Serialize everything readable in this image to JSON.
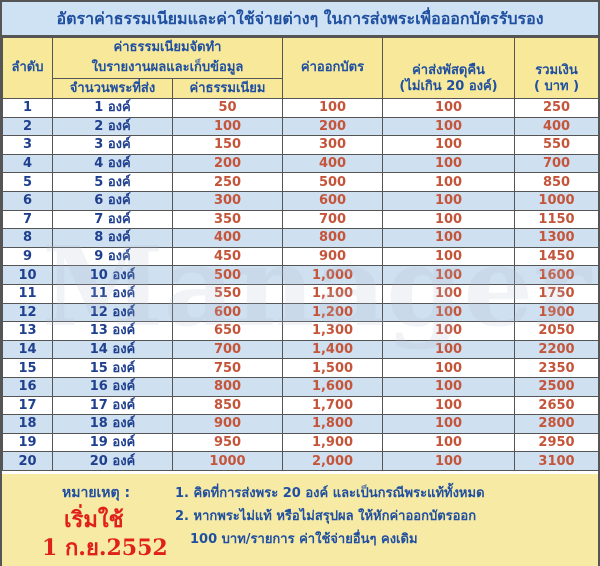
{
  "title": "อัตราค่าธรรมเนียมและค่าใช้จ่ายต่างๆ ในการส่งพระเพื่อออกบัตรรับรอง",
  "headers": {
    "order": "ลำดับ",
    "fee_group_1": "ค่าธรรมเนียมจัดทำ",
    "fee_group_2": "ใบรายงานผลและเก็บข้อมูล",
    "count": "จำนวนพระที่ส่ง",
    "fee": "ค่าธรรมเนียม",
    "card": "ค่าออกบัตร",
    "ship_1": "ค่าส่งพัสดุคืน",
    "ship_2": "(ไม่เกิน 20 องค์)",
    "total_1": "รวมเงิน",
    "total_2": "( บาท )"
  },
  "rows": [
    [
      "1",
      "1  องค์",
      "50",
      "100",
      "100",
      "250"
    ],
    [
      "2",
      "2  องค์",
      "100",
      "200",
      "100",
      "400"
    ],
    [
      "3",
      "3  องค์",
      "150",
      "300",
      "100",
      "550"
    ],
    [
      "4",
      "4  องค์",
      "200",
      "400",
      "100",
      "700"
    ],
    [
      "5",
      "5  องค์",
      "250",
      "500",
      "100",
      "850"
    ],
    [
      "6",
      "6  องค์",
      "300",
      "600",
      "100",
      "1000"
    ],
    [
      "7",
      "7  องค์",
      "350",
      "700",
      "100",
      "1150"
    ],
    [
      "8",
      "8  องค์",
      "400",
      "800",
      "100",
      "1300"
    ],
    [
      "9",
      "9  องค์",
      "450",
      "900",
      "100",
      "1450"
    ],
    [
      "10",
      "10  องค์",
      "500",
      "1,000",
      "100",
      "1600"
    ],
    [
      "11",
      "11  องค์",
      "550",
      "1,100",
      "100",
      "1750"
    ],
    [
      "12",
      "12  องค์",
      "600",
      "1,200",
      "100",
      "1900"
    ],
    [
      "13",
      "13  องค์",
      "650",
      "1,300",
      "100",
      "2050"
    ],
    [
      "14",
      "14  องค์",
      "700",
      "1,400",
      "100",
      "2200"
    ],
    [
      "15",
      "15  องค์",
      "750",
      "1,500",
      "100",
      "2350"
    ],
    [
      "16",
      "16  องค์",
      "800",
      "1,600",
      "100",
      "2500"
    ],
    [
      "17",
      "17  องค์",
      "850",
      "1,700",
      "100",
      "2650"
    ],
    [
      "18",
      "18  องค์",
      "900",
      "1,800",
      "100",
      "2800"
    ],
    [
      "19",
      "19  องค์",
      "950",
      "1,900",
      "100",
      "2950"
    ],
    [
      "20",
      "20  องค์",
      "1000",
      "2,000",
      "100",
      "3100"
    ]
  ],
  "footer": {
    "note_label": "หมายเหตุ :",
    "start_1": "เริ่มใช้",
    "start_2": "1 ก.ย.2552",
    "notes": [
      "1. คิดที่การส่งพระ 20 องค์ และเป็นกรณีพระแท้ทั้งหมด",
      "2. หากพระไม่แท้ หรือไม่สรุปผล ให้หักค่าออกบัตรออก",
      "100 บาท/รายการ ค่าใช้จ่ายอื่นๆ คงเดิม"
    ]
  },
  "watermark": "Manager",
  "colors": {
    "title_bg": "#cfe2f3",
    "header_bg": "#f7e89a",
    "text_blue": "#1f4fa0",
    "value_red": "#c4553a",
    "row_alt": "#cfe0f0",
    "start_red": "#e0201a"
  }
}
